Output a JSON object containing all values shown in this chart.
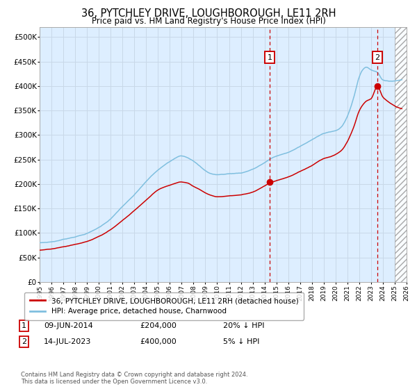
{
  "title": "36, PYTCHLEY DRIVE, LOUGHBOROUGH, LE11 2RH",
  "subtitle": "Price paid vs. HM Land Registry's House Price Index (HPI)",
  "hpi_color": "#7fbfdf",
  "price_color": "#cc0000",
  "background_plot": "#ddeeff",
  "background_fig": "#ffffff",
  "grid_color": "#c8d8e8",
  "purchase1_date": "09-JUN-2014",
  "purchase1_price": 204000,
  "purchase1_year": 2014.44,
  "purchase2_date": "14-JUL-2023",
  "purchase2_price": 400000,
  "purchase2_year": 2023.54,
  "legend_line1": "36, PYTCHLEY DRIVE, LOUGHBOROUGH, LE11 2RH (detached house)",
  "legend_line2": "HPI: Average price, detached house, Charnwood",
  "footer": "Contains HM Land Registry data © Crown copyright and database right 2024.\nThis data is licensed under the Open Government Licence v3.0.",
  "ylim": [
    0,
    520000
  ],
  "xlim_start": 1995,
  "xlim_end": 2026,
  "hpi_knots_t": [
    1995,
    1996,
    1997,
    1998,
    1999,
    2000,
    2001,
    2002,
    2003,
    2004,
    2005,
    2006,
    2007,
    2007.5,
    2008,
    2008.5,
    2009,
    2009.5,
    2010,
    2011,
    2012,
    2013,
    2014,
    2014.44,
    2015,
    2016,
    2017,
    2018,
    2019,
    2019.5,
    2020,
    2020.5,
    2021,
    2021.5,
    2022,
    2022.3,
    2022.6,
    2023,
    2023.54,
    2024,
    2024.5,
    2025,
    2025.5
  ],
  "hpi_knots_v": [
    80000,
    82000,
    87000,
    93000,
    100000,
    112000,
    130000,
    155000,
    178000,
    205000,
    228000,
    245000,
    258000,
    255000,
    248000,
    238000,
    228000,
    222000,
    220000,
    222000,
    224000,
    232000,
    245000,
    252000,
    258000,
    266000,
    278000,
    291000,
    305000,
    308000,
    310000,
    318000,
    340000,
    375000,
    420000,
    435000,
    440000,
    435000,
    430000,
    415000,
    412000,
    413000,
    415000
  ],
  "red_knots_t": [
    1995,
    1996,
    1997,
    1998,
    1999,
    2000,
    2001,
    2002,
    2003,
    2004,
    2005,
    2006,
    2007,
    2007.5,
    2008,
    2008.5,
    2009,
    2009.5,
    2010,
    2011,
    2012,
    2013,
    2014,
    2014.44,
    2015,
    2016,
    2017,
    2018,
    2019,
    2019.5,
    2020,
    2020.5,
    2021,
    2021.5,
    2022,
    2022.3,
    2022.6,
    2023,
    2023.54,
    2024,
    2024.5,
    2025,
    2025.5
  ],
  "red_knots_v": [
    65000,
    67000,
    71000,
    76000,
    82000,
    92000,
    106000,
    125000,
    145000,
    167000,
    188000,
    198000,
    205000,
    203000,
    196000,
    190000,
    183000,
    178000,
    175000,
    177000,
    179000,
    185000,
    198000,
    204000,
    209000,
    217000,
    228000,
    240000,
    254000,
    257000,
    262000,
    270000,
    288000,
    315000,
    350000,
    362000,
    370000,
    375000,
    400000,
    378000,
    368000,
    360000,
    355000
  ]
}
